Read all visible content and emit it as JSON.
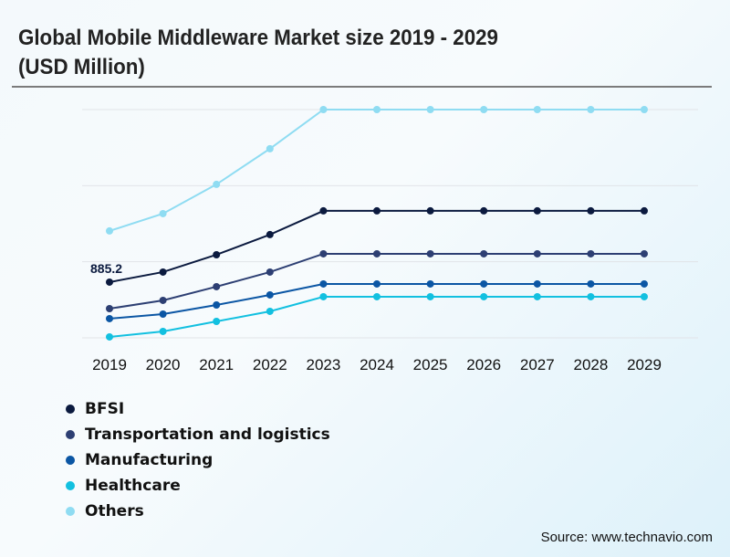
{
  "title": "Global Mobile Middleware Market size 2019 - 2029 (USD Million)",
  "source": "Source: www.technavio.com",
  "chart_data": {
    "type": "line",
    "title": "Global Mobile Middleware Market size 2019 - 2029 (USD Million)",
    "xlabel": "",
    "ylabel": "USD Million",
    "x": [
      "2019",
      "2020",
      "2021",
      "2022",
      "2023",
      "2024",
      "2025",
      "2026",
      "2027",
      "2028",
      "2029"
    ],
    "ylim": [
      0,
      3626
    ],
    "grid": true,
    "gridlines": [
      0,
      1209,
      2417,
      3626
    ],
    "legend_position": "bottom-left",
    "series": [
      {
        "name": "BFSI",
        "color": "#0b1a3f",
        "values": [
          885.2,
          1045,
          1320,
          1640,
          2017,
          2017,
          2017,
          2017,
          2017,
          2017,
          2017
        ]
      },
      {
        "name": "Transportation and logistics",
        "color": "#2d3f73",
        "values": [
          464,
          595,
          813,
          1045,
          1335,
          1335,
          1335,
          1335,
          1335,
          1335,
          1335
        ]
      },
      {
        "name": "Manufacturing",
        "color": "#0b56a4",
        "values": [
          305,
          377,
          522,
          682,
          856,
          856,
          856,
          856,
          856,
          856,
          856
        ]
      },
      {
        "name": "Healthcare",
        "color": "#12c0e0",
        "values": [
          15,
          102,
          261,
          421,
          653,
          653,
          653,
          653,
          653,
          653,
          653
        ]
      },
      {
        "name": "Others",
        "color": "#8fdcf2",
        "values": [
          1698,
          1973,
          2438,
          3004,
          3626,
          3626,
          3626,
          3626,
          3626,
          3626,
          3626
        ]
      }
    ],
    "annotations": [
      {
        "series": "BFSI",
        "x": "2019",
        "text": "885.2"
      }
    ]
  }
}
